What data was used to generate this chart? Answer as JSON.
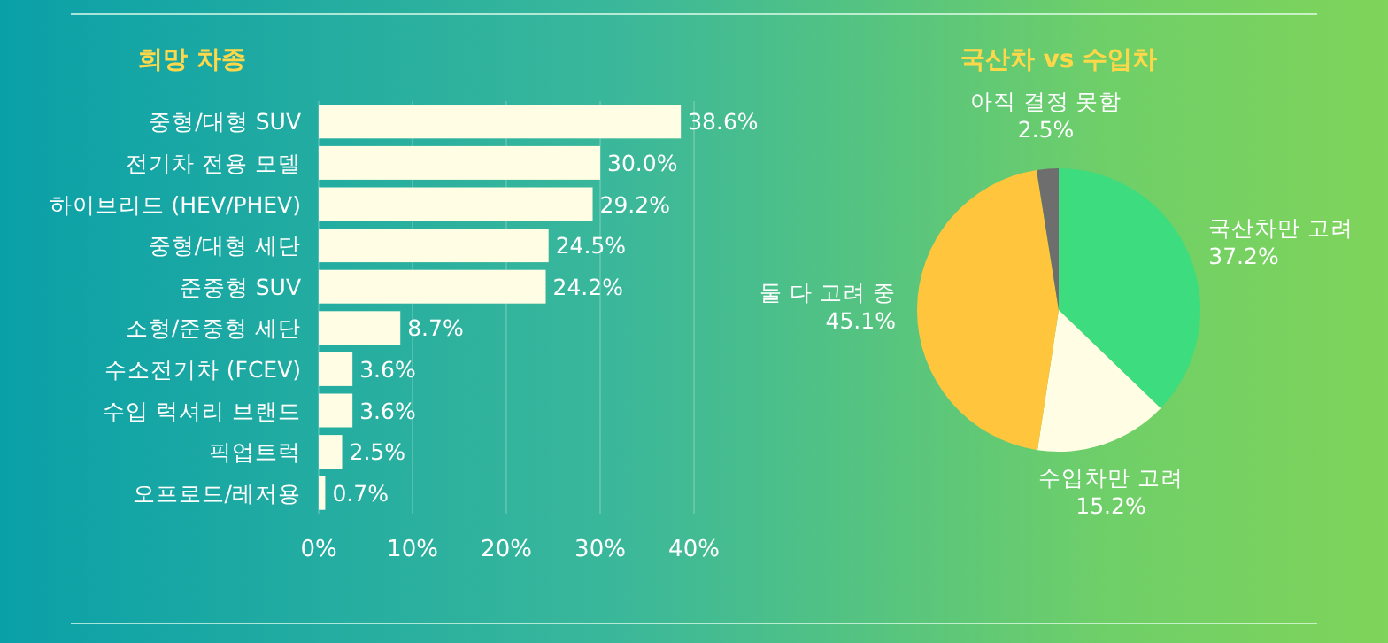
{
  "chart_data": [
    {
      "type": "bar",
      "orientation": "horizontal",
      "title": "희망 차종",
      "categories": [
        "중형/대형 SUV",
        "전기차 전용 모델",
        "하이브리드 (HEV/PHEV)",
        "중형/대형 세단",
        "준중형 SUV",
        "소형/준중형 세단",
        "수소전기차 (FCEV)",
        "수입 럭셔리 브랜드",
        "픽업트럭",
        "오프로드/레저용"
      ],
      "values": [
        38.6,
        30.0,
        29.2,
        24.5,
        24.2,
        8.7,
        3.6,
        3.6,
        2.5,
        0.7
      ],
      "value_labels": [
        "38.6%",
        "30.0%",
        "29.2%",
        "24.5%",
        "24.2%",
        "8.7%",
        "3.6%",
        "3.6%",
        "2.5%",
        "0.7%"
      ],
      "color": "#fffde3",
      "xlim": [
        0,
        40
      ],
      "xticks": [
        {
          "value": 0,
          "label": "0%"
        },
        {
          "value": 10,
          "label": "10%"
        },
        {
          "value": 20,
          "label": "20%"
        },
        {
          "value": 30,
          "label": "30%"
        },
        {
          "value": 40,
          "label": "40%"
        }
      ],
      "grid": "x"
    },
    {
      "type": "pie",
      "title": "국산차 vs 수입차",
      "categories": [
        "국산차만 고려",
        "수입차만 고려",
        "둘 다 고려 중",
        "아직 결정 못함"
      ],
      "values": [
        37.2,
        15.2,
        45.1,
        2.5
      ],
      "value_labels": [
        "37.2%",
        "15.2%",
        "45.1%",
        "2.5%"
      ],
      "colors": [
        "#3ddc7e",
        "#fffde3",
        "#ffc53d",
        "#6e6e6e"
      ]
    }
  ]
}
